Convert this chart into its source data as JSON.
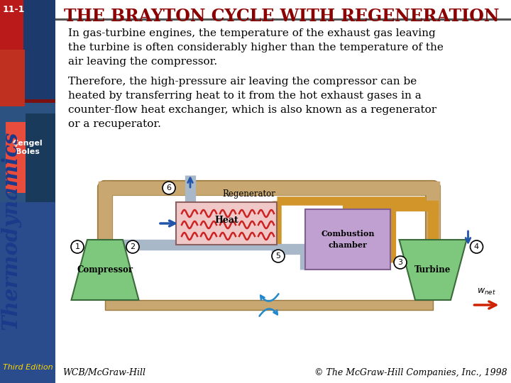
{
  "slide_number": "11-1",
  "title": "THE BRAYTON CYCLE WITH REGENERATION",
  "title_color": "#8B0000",
  "title_fontsize": 17,
  "sidebar_text_line1": "Çengel",
  "sidebar_text_line2": "Boles",
  "sidebar_label": "Thermodynamics",
  "sidebar_label_color": "#1a3a8a",
  "edition_text": "Third Edition",
  "edition_color": "#FFD700",
  "body_text_para1": "In gas-turbine engines, the temperature of the exhaust gas leaving\nthe turbine is often considerably higher than the temperature of the\nair leaving the compressor.",
  "body_text_para2": "Therefore, the high-pressure air leaving the compressor can be\nheated by transferring heat to it from the hot exhaust gases in a\ncounter-flow heat exchanger, which is also known as a regenerator\nor a recuperator.",
  "body_fontsize": 11,
  "footer_left": "WCB/McGraw-Hill",
  "footer_right": "© The McGraw-Hill Companies, Inc., 1998",
  "footer_fontsize": 9,
  "bg_color": "#FFFFFF",
  "header_bar_color": "#555555",
  "node_labels": [
    "1",
    "2",
    "3",
    "4",
    "5",
    "6"
  ],
  "compressor_label": "Compressor",
  "turbine_label": "Turbine",
  "regen_label": "Regenerator",
  "heat_label": "Heat",
  "comb_label1": "Combustion",
  "comb_label2": "chamber",
  "wnet_label": "w",
  "wnet_sub": "net"
}
